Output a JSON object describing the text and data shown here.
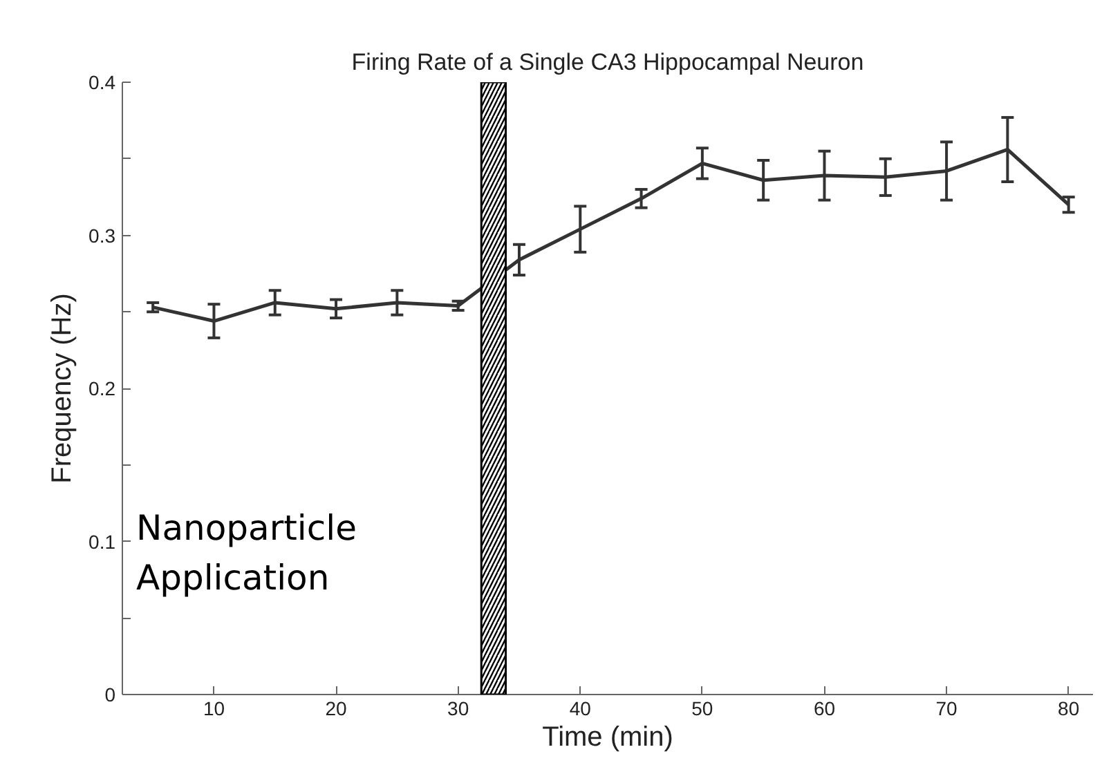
{
  "chart_data": {
    "type": "line",
    "title": "Firing Rate of a Single CA3 Hippocampal Neuron",
    "xlabel": "Time (min)",
    "ylabel": "Frequency (Hz)",
    "x": [
      5,
      10,
      15,
      20,
      25,
      30,
      35,
      40,
      45,
      50,
      55,
      60,
      65,
      70,
      75,
      80
    ],
    "series": [
      {
        "color": "#333333",
        "values": [
          0.253,
          0.244,
          0.256,
          0.252,
          0.256,
          0.254,
          0.284,
          0.304,
          0.324,
          0.347,
          0.336,
          0.339,
          0.338,
          0.342,
          0.356,
          0.32
        ],
        "errors": [
          0.003,
          0.011,
          0.008,
          0.006,
          0.008,
          0.003,
          0.01,
          0.015,
          0.006,
          0.01,
          0.013,
          0.016,
          0.012,
          0.019,
          0.021,
          0.005
        ]
      }
    ],
    "bands": [
      {
        "axis": "x",
        "from": 31.9,
        "to": 33.9,
        "color": "#000000"
      }
    ],
    "annotations": [
      "Nanoparticle\nApplication"
    ],
    "xlim": [
      2.5,
      82
    ],
    "ylim": [
      0,
      0.4
    ],
    "xticks": [
      10,
      20,
      30,
      40,
      50,
      60,
      70,
      80
    ],
    "yticks": [
      0,
      {
        "value": 0.05,
        "label": null
      },
      0.1,
      {
        "value": 0.15,
        "label": null
      },
      0.2,
      {
        "value": 0.25,
        "label": null
      },
      0.3,
      {
        "value": 0.35,
        "label": null
      },
      0.4
    ],
    "grid": false,
    "marker": "none",
    "line_style": "solid"
  }
}
